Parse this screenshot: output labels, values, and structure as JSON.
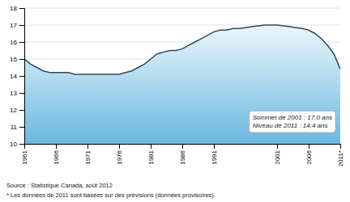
{
  "chart_data": {
    "type": "area",
    "x": [
      1961,
      1962,
      1963,
      1964,
      1965,
      1966,
      1967,
      1968,
      1969,
      1970,
      1971,
      1972,
      1973,
      1974,
      1975,
      1976,
      1977,
      1978,
      1979,
      1980,
      1981,
      1982,
      1983,
      1984,
      1985,
      1986,
      1987,
      1988,
      1989,
      1990,
      1991,
      1992,
      1993,
      1994,
      1995,
      1996,
      1997,
      1998,
      1999,
      2000,
      2001,
      2002,
      2003,
      2004,
      2005,
      2006,
      2007,
      2008,
      2009,
      2010,
      2011
    ],
    "values": [
      15.0,
      14.7,
      14.5,
      14.3,
      14.2,
      14.2,
      14.2,
      14.2,
      14.1,
      14.1,
      14.1,
      14.1,
      14.1,
      14.1,
      14.1,
      14.1,
      14.2,
      14.3,
      14.5,
      14.7,
      15.0,
      15.3,
      15.4,
      15.5,
      15.5,
      15.6,
      15.8,
      16.0,
      16.2,
      16.4,
      16.6,
      16.7,
      16.7,
      16.8,
      16.8,
      16.85,
      16.9,
      16.95,
      17.0,
      17.0,
      17.0,
      16.95,
      16.9,
      16.85,
      16.8,
      16.7,
      16.5,
      16.2,
      15.8,
      15.3,
      14.4
    ],
    "color": "#6bb8e0",
    "xlim": [
      1961,
      2011
    ],
    "ylim": [
      10,
      18
    ],
    "xticks": [
      1961,
      1966,
      1971,
      1976,
      1981,
      1986,
      1991,
      2001,
      2006,
      {
        "value": 2011,
        "label": "2011*"
      }
    ],
    "yticks": [
      10,
      11,
      12,
      13,
      14,
      15,
      16,
      17,
      18
    ],
    "grid": true,
    "annotation": "Sommet de 2001 : 17,0 ans\nNiveau de 2011 : 14,4 ans",
    "source": "Source : Statistique Canada, août 2012",
    "footnote": "* Les données de 2011 sont basées sur des prévisions (données provisoires)."
  }
}
